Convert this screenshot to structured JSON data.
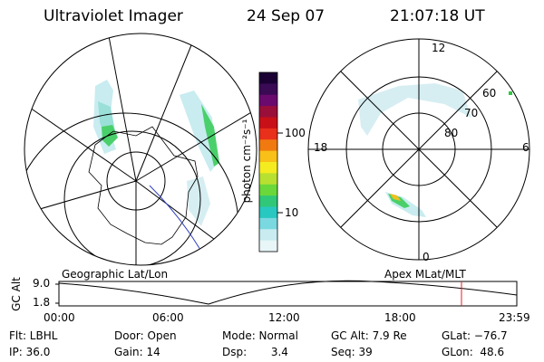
{
  "header": {
    "instrument": "Ultraviolet Imager",
    "date": "24 Sep 07",
    "time": "21:07:18 UT"
  },
  "colorbar": {
    "unit_label": "photon cm⁻²s⁻¹",
    "ticks": [
      "100",
      "10"
    ],
    "colors": [
      "#1a0033",
      "#3a0a55",
      "#6a0a6e",
      "#9a0f3a",
      "#c81018",
      "#e8301a",
      "#f07a10",
      "#f8c018",
      "#f4ec20",
      "#b8e030",
      "#6ad83a",
      "#30c878",
      "#28c8c0",
      "#7ad8e0",
      "#c8ecf0",
      "#e8f6f8"
    ]
  },
  "right_map": {
    "mlt_labels": {
      "top": "12",
      "left": "18",
      "right": "6",
      "bottom": "0"
    },
    "lat_labels": [
      "60",
      "70",
      "80"
    ]
  },
  "timeline": {
    "y_label": "GC Alt",
    "y_ticks": [
      "9.0",
      "1.8"
    ],
    "left_caption": "Geographic Lat/Lon",
    "right_caption": "Apex MLat/MLT",
    "x_ticks": [
      "00:00",
      "06:00",
      "12:00",
      "18:00",
      "23:59"
    ],
    "marker_color": "#e02020"
  },
  "info_rows": [
    [
      "Flt: LBHL",
      "Door: Open",
      "Mode: Normal",
      "GC Alt: 7.9 Re",
      "GLat: −76.7"
    ],
    [
      "IP: 36.0",
      "Gain: 14",
      "Dsp:       3.4",
      "Seq: 39",
      "GLon:  48.6"
    ]
  ]
}
